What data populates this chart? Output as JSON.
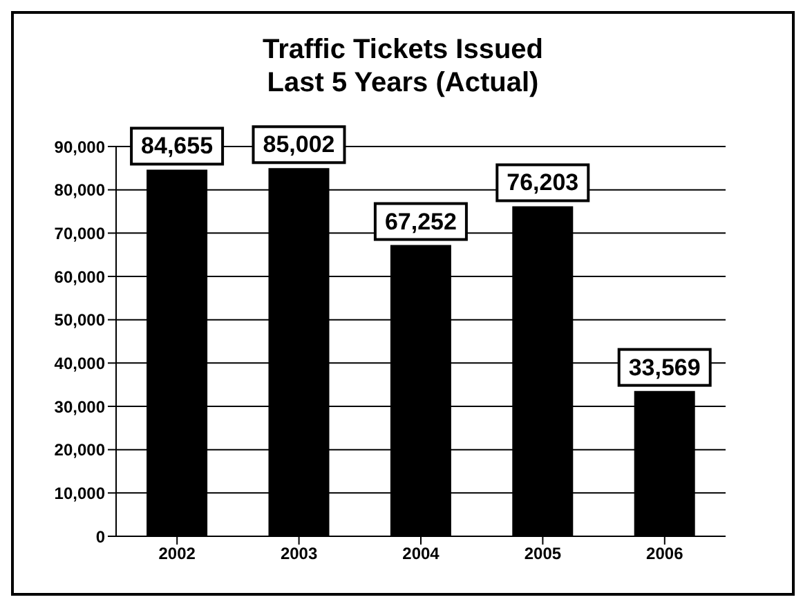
{
  "chart_data": {
    "type": "bar",
    "title": "Traffic Tickets Issued",
    "subtitle": "Last 5 Years (Actual)",
    "categories": [
      "2002",
      "2003",
      "2004",
      "2005",
      "2006"
    ],
    "values": [
      84655,
      85002,
      67252,
      76203,
      33569
    ],
    "color": "#000000",
    "value_labels": [
      "84,655",
      "85,002",
      "67,252",
      "76,203",
      "33,569"
    ],
    "ylim": [
      0,
      90000
    ],
    "yticks": [
      {
        "value": 0,
        "label": "0"
      },
      {
        "value": 10000,
        "label": "10,000"
      },
      {
        "value": 20000,
        "label": "20,000"
      },
      {
        "value": 30000,
        "label": "30,000"
      },
      {
        "value": 40000,
        "label": "40,000"
      },
      {
        "value": 50000,
        "label": "50,000"
      },
      {
        "value": 60000,
        "label": "60,000"
      },
      {
        "value": 70000,
        "label": "70,000"
      },
      {
        "value": 80000,
        "label": "80,000"
      },
      {
        "value": 90000,
        "label": "90,000"
      }
    ],
    "grid": "y",
    "legend": false
  }
}
